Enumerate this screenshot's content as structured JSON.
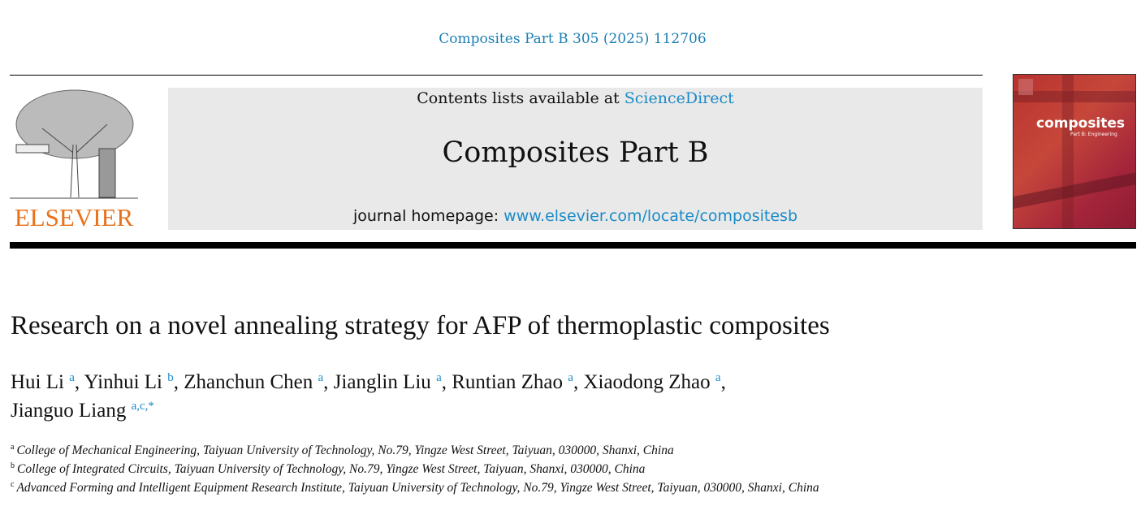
{
  "citation": "Composites Part B 305 (2025) 112706",
  "publisher_logo": "ELSEVIER",
  "banner": {
    "contents_prefix": "Contents lists available at ",
    "contents_link": "ScienceDirect",
    "journal_name": "Composites Part B",
    "homepage_prefix": "journal homepage: ",
    "homepage_link": "www.elsevier.com/locate/compositesb"
  },
  "cover": {
    "title": "composites",
    "subtitle": "Part B: Engineering"
  },
  "title": "Research on a novel annealing strategy for AFP of thermoplastic composites",
  "authors": [
    {
      "name": "Hui Li",
      "aff": "a"
    },
    {
      "name": "Yinhui Li",
      "aff": "b"
    },
    {
      "name": "Zhanchun Chen",
      "aff": "a"
    },
    {
      "name": "Jianglin Liu",
      "aff": "a"
    },
    {
      "name": "Runtian Zhao",
      "aff": "a"
    },
    {
      "name": "Xiaodong Zhao",
      "aff": "a"
    },
    {
      "name": "Jianguo Liang",
      "aff": "a,c,*"
    }
  ],
  "affiliations": [
    {
      "mark": "a",
      "text": "College of Mechanical Engineering, Taiyuan University of Technology, No.79, Yingze West Street, Taiyuan, 030000, Shanxi, China"
    },
    {
      "mark": "b",
      "text": "College of Integrated Circuits, Taiyuan University of Technology, No.79, Yingze West Street, Taiyuan, Shanxi, 030000, China"
    },
    {
      "mark": "c",
      "text": "Advanced Forming and Intelligent Equipment Research Institute, Taiyuan University of Technology, No.79, Yingze West Street, Taiyuan, 030000, Shanxi, China"
    }
  ]
}
